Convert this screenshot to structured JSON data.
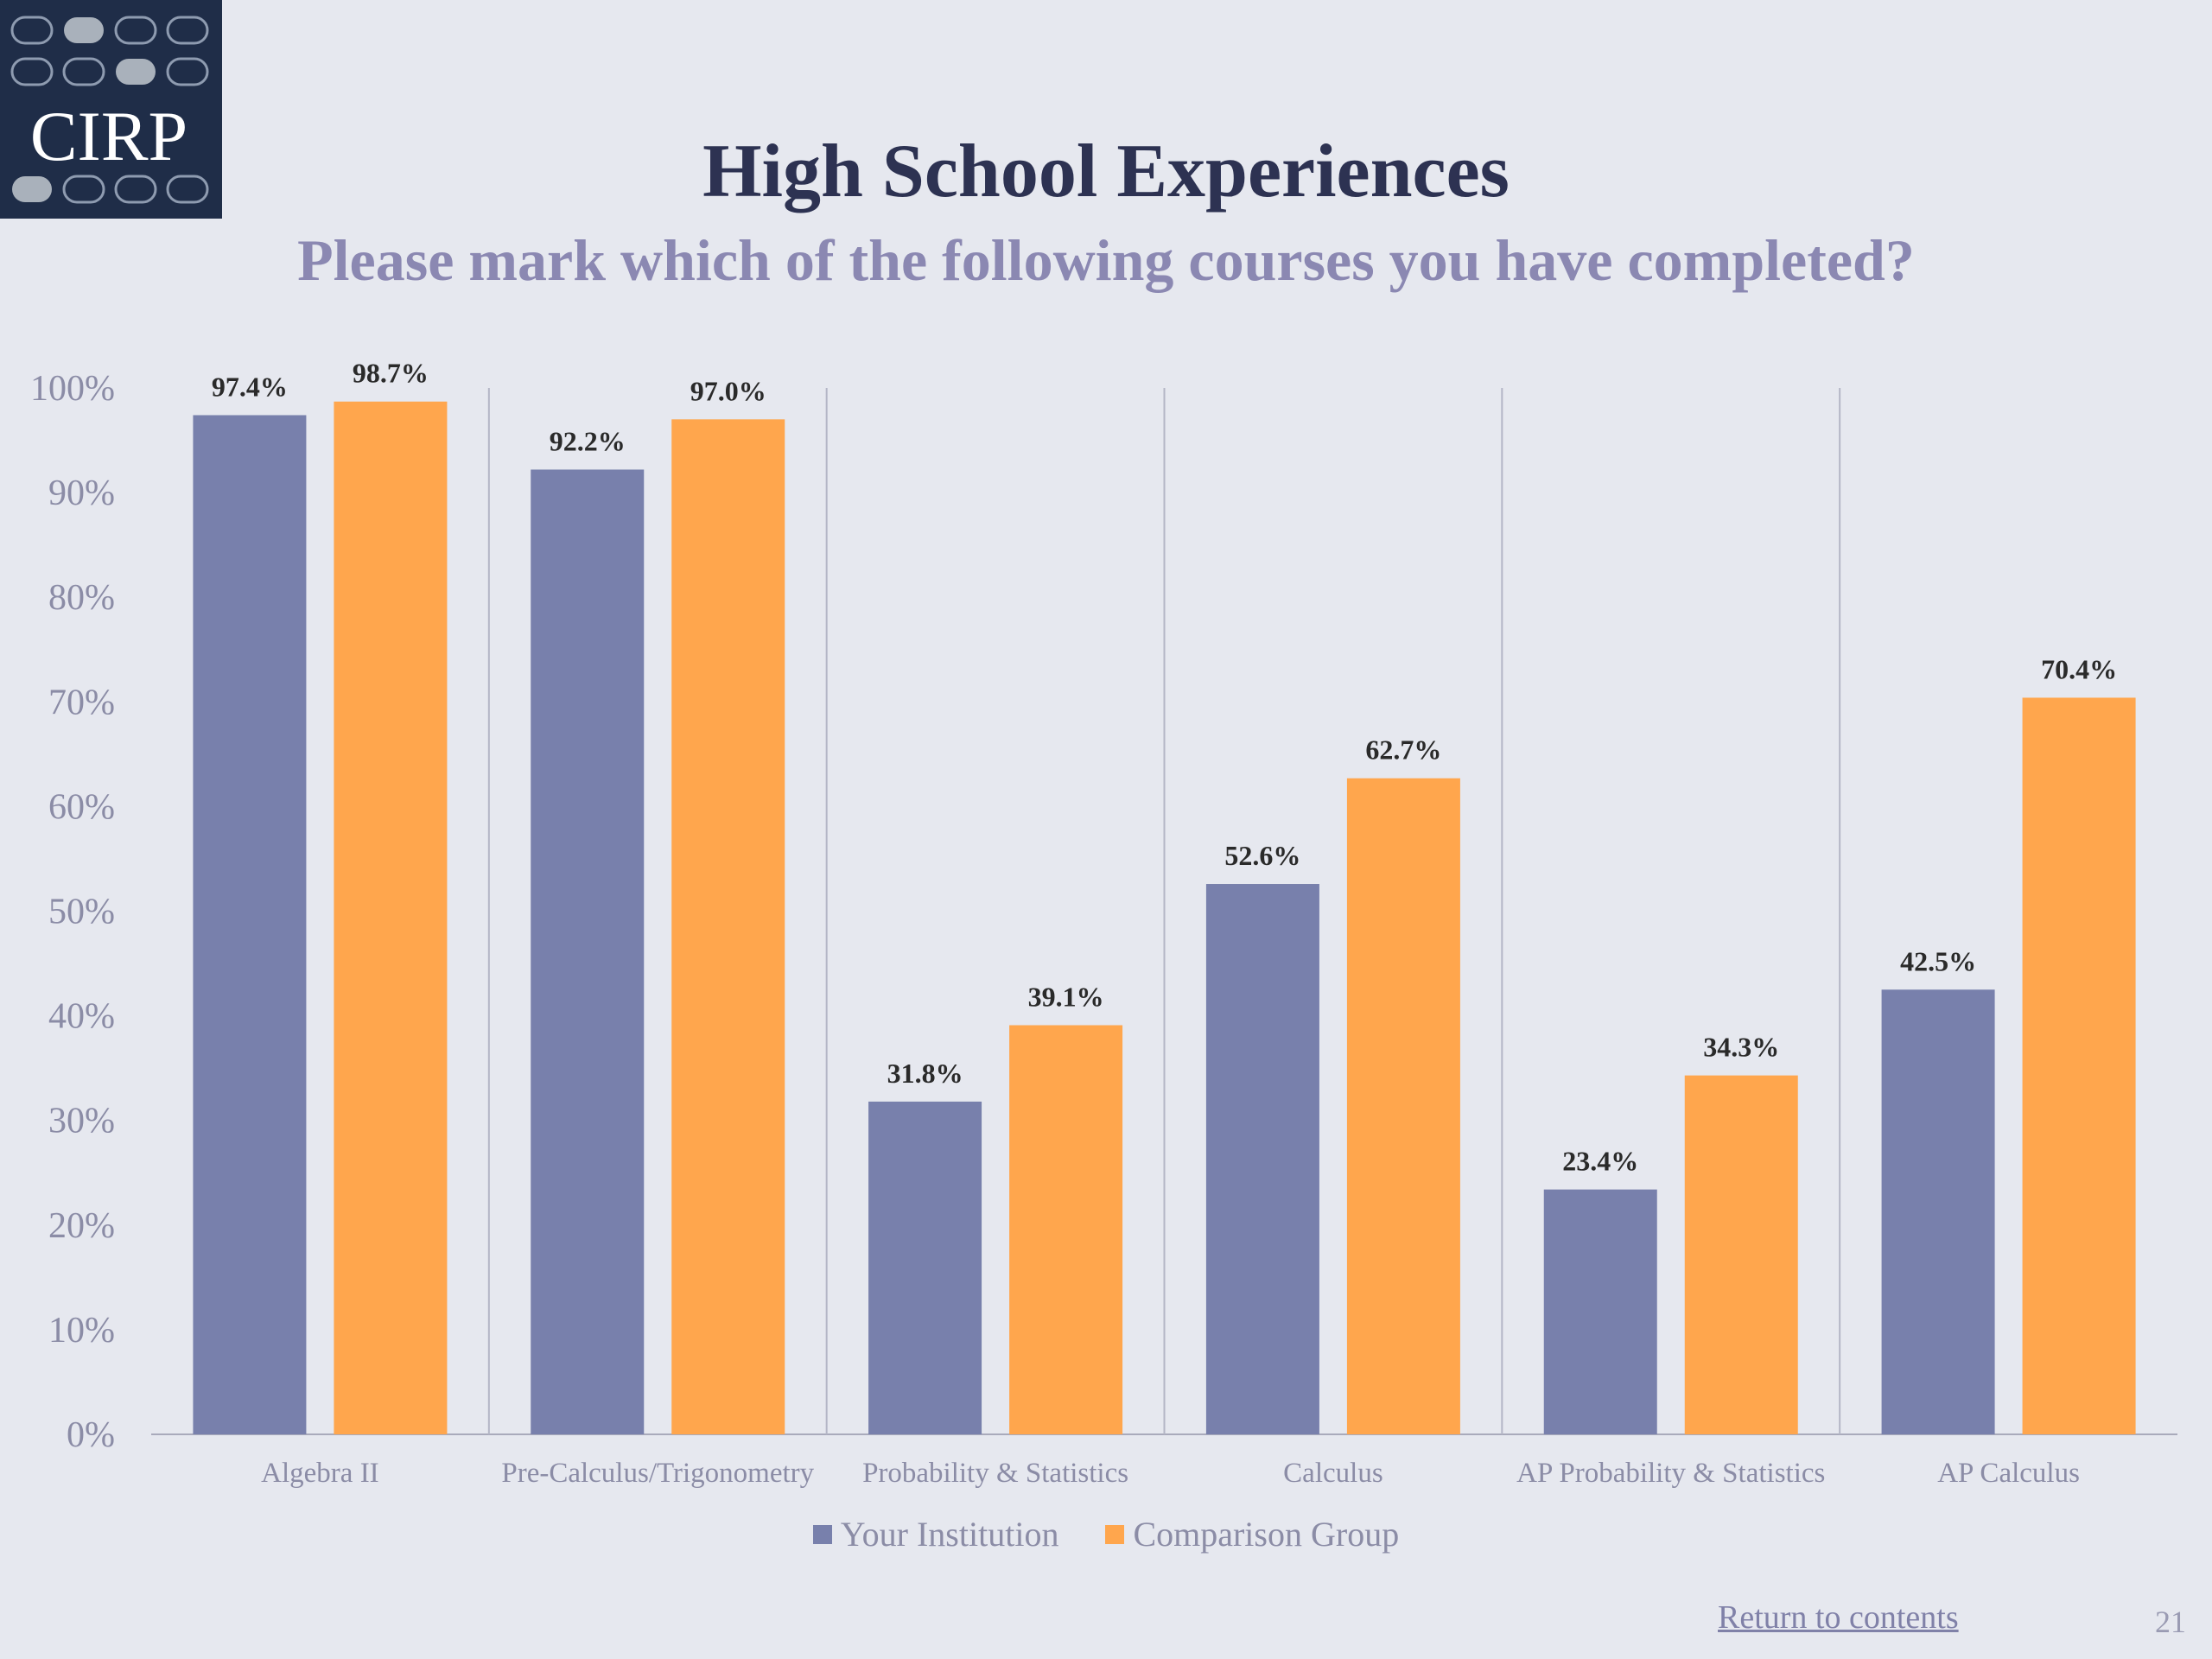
{
  "logo": {
    "text": "CIRP"
  },
  "header": {
    "title": "High School Experiences",
    "subtitle": "Please mark which of the following courses you have completed?"
  },
  "chart_data": {
    "type": "bar",
    "categories": [
      "Algebra II",
      "Pre-Calculus/Trigonometry",
      "Probability & Statistics",
      "Calculus",
      "AP Probability & Statistics",
      "AP Calculus"
    ],
    "series": [
      {
        "name": "Your Institution",
        "color": "#7880ac",
        "values": [
          97.4,
          92.2,
          31.8,
          52.6,
          23.4,
          42.5
        ]
      },
      {
        "name": "Comparison Group",
        "color": "#ffa64d",
        "values": [
          98.7,
          97.0,
          39.1,
          62.7,
          34.3,
          70.4
        ]
      }
    ],
    "value_suffix": "%",
    "ylim": [
      0,
      100
    ],
    "yticks": [
      "0%",
      "10%",
      "20%",
      "30%",
      "40%",
      "50%",
      "60%",
      "70%",
      "80%",
      "90%",
      "100%"
    ],
    "legend_position": "bottom",
    "grid": false
  },
  "footer": {
    "return_label": "Return to contents",
    "page_number": "21"
  }
}
